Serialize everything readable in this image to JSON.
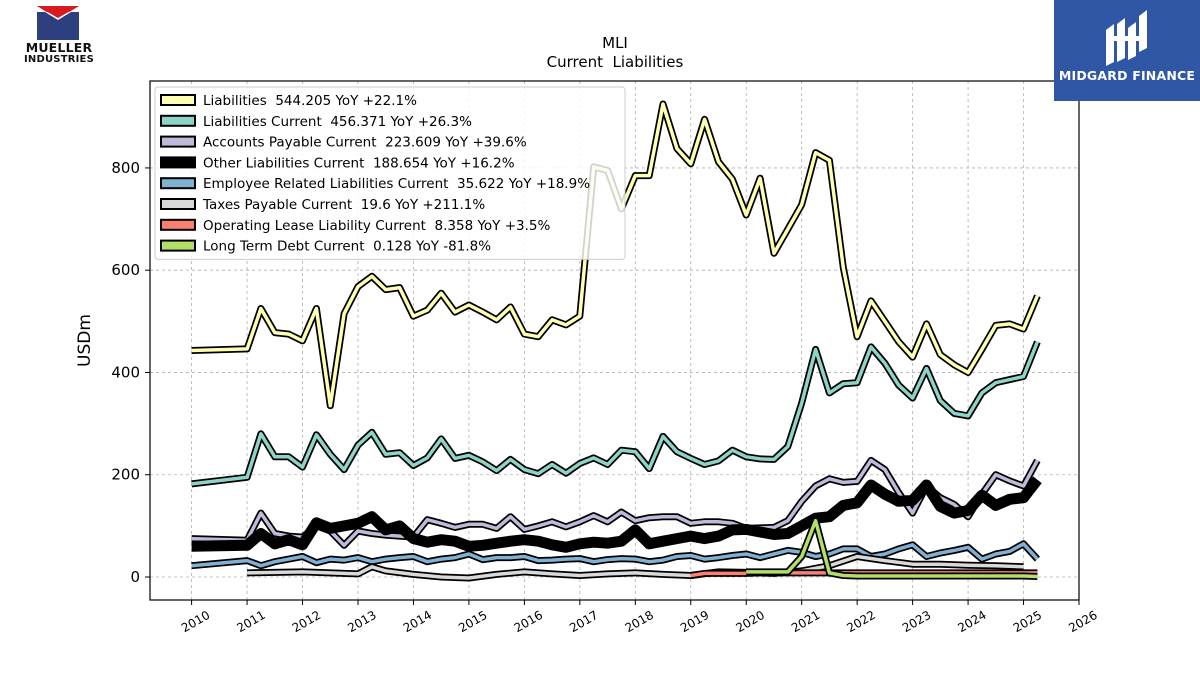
{
  "brand_left": {
    "line1": "MUELLER",
    "line2": "INDUSTRIES"
  },
  "brand_right": {
    "name": "MIDGARD FINANCE"
  },
  "chart_data": {
    "type": "line",
    "title": "MLI",
    "subtitle": "Current  Liabilities",
    "ylabel": "USDm",
    "xlabel": "",
    "xlim": [
      2009.25,
      2026.0
    ],
    "ylim": [
      -45,
      970
    ],
    "x_ticks": [
      2010,
      2011,
      2012,
      2013,
      2014,
      2015,
      2016,
      2017,
      2018,
      2019,
      2020,
      2021,
      2022,
      2023,
      2024,
      2025,
      2026
    ],
    "y_ticks": [
      0,
      200,
      400,
      600,
      800
    ],
    "grid": true,
    "legend_position": "top-left",
    "series": [
      {
        "name": "Liabilities  544.205 YoY +22.1%",
        "color": "#ffffb3",
        "x": [
          2010.0,
          2011.0,
          2011.25,
          2011.5,
          2011.75,
          2012.0,
          2012.25,
          2012.5,
          2012.75,
          2013.0,
          2013.25,
          2013.5,
          2013.75,
          2014.0,
          2014.25,
          2014.5,
          2014.75,
          2015.0,
          2015.25,
          2015.5,
          2015.75,
          2016.0,
          2016.25,
          2016.5,
          2016.75,
          2017.0,
          2017.25,
          2017.5,
          2017.75,
          2018.0,
          2018.25,
          2018.5,
          2018.75,
          2019.0,
          2019.25,
          2019.5,
          2019.75,
          2020.0,
          2020.25,
          2020.5,
          2020.75,
          2021.0,
          2021.25,
          2021.5,
          2021.75,
          2022.0,
          2022.25,
          2022.5,
          2022.75,
          2023.0,
          2023.25,
          2023.5,
          2023.75,
          2024.0,
          2024.25,
          2024.5,
          2024.75,
          2025.0,
          2025.25
        ],
        "y": [
          443,
          446,
          525,
          478,
          475,
          462,
          525,
          335,
          515,
          568,
          588,
          562,
          566,
          510,
          522,
          555,
          518,
          532,
          518,
          503,
          528,
          475,
          470,
          503,
          493,
          510,
          802,
          795,
          720,
          785,
          785,
          925,
          838,
          808,
          895,
          812,
          778,
          708,
          780,
          633,
          680,
          728,
          830,
          815,
          605,
          470,
          540,
          500,
          460,
          430,
          495,
          435,
          415,
          400,
          445,
          492,
          495,
          485,
          550
        ]
      },
      {
        "name": "Liabilities Current  456.371 YoY +26.3%",
        "color": "#8dd3c7",
        "x": [
          2010.0,
          2011.0,
          2011.25,
          2011.5,
          2011.75,
          2012.0,
          2012.25,
          2012.5,
          2012.75,
          2013.0,
          2013.25,
          2013.5,
          2013.75,
          2014.0,
          2014.25,
          2014.5,
          2014.75,
          2015.0,
          2015.25,
          2015.5,
          2015.75,
          2016.0,
          2016.25,
          2016.5,
          2016.75,
          2017.0,
          2017.25,
          2017.5,
          2017.75,
          2018.0,
          2018.25,
          2018.5,
          2018.75,
          2019.0,
          2019.25,
          2019.5,
          2019.75,
          2020.0,
          2020.25,
          2020.5,
          2020.75,
          2021.0,
          2021.25,
          2021.5,
          2021.75,
          2022.0,
          2022.25,
          2022.5,
          2022.75,
          2023.0,
          2023.25,
          2023.5,
          2023.75,
          2024.0,
          2024.25,
          2024.5,
          2024.75,
          2025.0,
          2025.25
        ],
        "y": [
          182,
          195,
          280,
          235,
          235,
          215,
          278,
          240,
          210,
          258,
          283,
          240,
          243,
          218,
          233,
          270,
          232,
          238,
          225,
          208,
          230,
          210,
          202,
          220,
          203,
          222,
          233,
          220,
          248,
          245,
          212,
          275,
          245,
          232,
          220,
          227,
          248,
          235,
          231,
          230,
          255,
          340,
          445,
          360,
          378,
          380,
          450,
          418,
          375,
          350,
          408,
          345,
          320,
          315,
          360,
          380,
          386,
          392,
          460
        ]
      },
      {
        "name": "Accounts Payable Current  223.609 YoY +39.6%",
        "color": "#bebada",
        "x": [
          2010.0,
          2011.0,
          2011.25,
          2011.5,
          2011.75,
          2012.0,
          2012.25,
          2012.5,
          2012.75,
          2013.0,
          2013.25,
          2013.5,
          2013.75,
          2014.0,
          2014.25,
          2014.5,
          2014.75,
          2015.0,
          2015.25,
          2015.5,
          2015.75,
          2016.0,
          2016.25,
          2016.5,
          2016.75,
          2017.0,
          2017.25,
          2017.5,
          2017.75,
          2018.0,
          2018.25,
          2018.5,
          2018.75,
          2019.0,
          2019.25,
          2019.5,
          2019.75,
          2020.0,
          2020.25,
          2020.5,
          2020.75,
          2021.0,
          2021.25,
          2021.5,
          2021.75,
          2022.0,
          2022.25,
          2022.5,
          2022.75,
          2023.0,
          2023.25,
          2023.5,
          2023.75,
          2024.0,
          2024.25,
          2024.5,
          2024.75,
          2025.0,
          2025.25
        ],
        "y": [
          75,
          72,
          125,
          85,
          80,
          78,
          100,
          90,
          62,
          90,
          85,
          82,
          80,
          78,
          112,
          105,
          97,
          103,
          103,
          95,
          118,
          93,
          100,
          108,
          98,
          108,
          120,
          108,
          127,
          110,
          116,
          118,
          118,
          105,
          108,
          108,
          105,
          95,
          96,
          97,
          110,
          148,
          178,
          192,
          185,
          187,
          228,
          210,
          165,
          125,
          178,
          155,
          142,
          118,
          162,
          200,
          188,
          178,
          228
        ]
      },
      {
        "name": "Other Liabilities Current  188.654 YoY +16.2%",
        "color": "#000000",
        "x": [
          2010.0,
          2011.0,
          2011.25,
          2011.5,
          2011.75,
          2012.0,
          2012.25,
          2012.5,
          2012.75,
          2013.0,
          2013.25,
          2013.5,
          2013.75,
          2014.0,
          2014.25,
          2014.5,
          2014.75,
          2015.0,
          2015.25,
          2015.5,
          2015.75,
          2016.0,
          2016.25,
          2016.5,
          2016.75,
          2017.0,
          2017.25,
          2017.5,
          2017.75,
          2018.0,
          2018.25,
          2018.5,
          2018.75,
          2019.0,
          2019.25,
          2019.5,
          2019.75,
          2020.0,
          2020.25,
          2020.5,
          2020.75,
          2021.0,
          2021.25,
          2021.5,
          2021.75,
          2022.0,
          2022.25,
          2022.5,
          2022.75,
          2023.0,
          2023.25,
          2023.5,
          2023.75,
          2024.0,
          2024.25,
          2024.5,
          2024.75,
          2025.0,
          2025.25
        ],
        "y": [
          60,
          62,
          85,
          65,
          73,
          63,
          106,
          95,
          100,
          105,
          118,
          92,
          100,
          75,
          68,
          73,
          70,
          60,
          62,
          66,
          70,
          73,
          70,
          63,
          58,
          65,
          68,
          66,
          70,
          92,
          65,
          70,
          75,
          80,
          75,
          80,
          92,
          93,
          88,
          83,
          85,
          100,
          115,
          118,
          140,
          145,
          180,
          162,
          148,
          150,
          180,
          138,
          125,
          130,
          160,
          140,
          152,
          155,
          190
        ]
      },
      {
        "name": "Employee Related Liabilities Current  35.622 YoY +18.9%",
        "color": "#80b1d3",
        "x": [
          2010.0,
          2011.0,
          2011.25,
          2011.5,
          2011.75,
          2012.0,
          2012.25,
          2012.5,
          2012.75,
          2013.0,
          2013.25,
          2013.5,
          2013.75,
          2014.0,
          2014.25,
          2014.5,
          2014.75,
          2015.0,
          2015.25,
          2015.5,
          2015.75,
          2016.0,
          2016.25,
          2016.5,
          2016.75,
          2017.0,
          2017.25,
          2017.5,
          2017.75,
          2018.0,
          2018.25,
          2018.5,
          2018.75,
          2019.0,
          2019.25,
          2019.5,
          2019.75,
          2020.0,
          2020.25,
          2020.5,
          2020.75,
          2021.0,
          2021.25,
          2021.5,
          2021.75,
          2022.0,
          2022.25,
          2022.5,
          2022.75,
          2023.0,
          2023.25,
          2023.5,
          2023.75,
          2024.0,
          2024.25,
          2024.5,
          2024.75,
          2025.0,
          2025.25
        ],
        "y": [
          22,
          32,
          22,
          30,
          35,
          40,
          28,
          35,
          33,
          38,
          30,
          35,
          38,
          40,
          30,
          35,
          38,
          45,
          34,
          38,
          38,
          40,
          32,
          33,
          35,
          36,
          30,
          34,
          36,
          35,
          30,
          33,
          40,
          42,
          35,
          38,
          42,
          45,
          38,
          45,
          52,
          48,
          40,
          45,
          55,
          55,
          40,
          45,
          55,
          63,
          40,
          47,
          52,
          58,
          35,
          45,
          50,
          65,
          35
        ]
      },
      {
        "name": "Taxes Payable Current  19.6 YoY +211.1%",
        "color": "#d9d9d9",
        "x": [
          2011.0,
          2011.5,
          2012.0,
          2012.5,
          2013.0,
          2013.25,
          2013.5,
          2014.0,
          2014.5,
          2015.0,
          2015.5,
          2016.0,
          2016.5,
          2017.0,
          2017.5,
          2018.0,
          2018.5,
          2019.0,
          2019.5,
          2020.0,
          2020.5,
          2021.0,
          2021.5,
          2022.0,
          2022.5,
          2023.0,
          2023.5,
          2024.0,
          2024.5,
          2025.0
        ],
        "y": [
          8,
          9,
          10,
          8,
          6,
          20,
          12,
          5,
          0,
          -2,
          5,
          10,
          6,
          3,
          6,
          8,
          5,
          3,
          10,
          9,
          7,
          12,
          22,
          40,
          32,
          25,
          25,
          23,
          22,
          20
        ]
      },
      {
        "name": "Operating Lease Liability Current  8.358 YoY +3.5%",
        "color": "#fb8072",
        "x": [
          2019.0,
          2019.25,
          2019.5,
          2019.75,
          2020.0,
          2020.25,
          2020.5,
          2020.75,
          2021.0,
          2021.25,
          2021.5,
          2021.75,
          2022.0,
          2022.25,
          2022.5,
          2022.75,
          2023.0,
          2023.25,
          2023.5,
          2023.75,
          2024.0,
          2024.25,
          2024.5,
          2024.75,
          2025.0,
          2025.25
        ],
        "y": [
          3,
          7,
          7,
          7,
          7,
          8,
          8,
          8,
          8,
          8,
          8,
          8,
          8,
          8,
          8,
          8,
          8,
          8,
          8,
          8,
          8,
          8,
          8,
          8,
          8,
          8
        ]
      },
      {
        "name": "Long Term Debt Current  0.128 YoY -81.8%",
        "color": "#b3de69",
        "x": [
          2020.0,
          2020.25,
          2020.5,
          2020.75,
          2021.0,
          2021.25,
          2021.5,
          2021.75,
          2022.0,
          2022.25,
          2022.5,
          2022.75,
          2023.0,
          2023.25,
          2023.5,
          2023.75,
          2024.0,
          2024.25,
          2024.5,
          2024.75,
          2025.0,
          2025.25
        ],
        "y": [
          10,
          10,
          10,
          10,
          40,
          110,
          8,
          3,
          2,
          2,
          2,
          2,
          2,
          2,
          2,
          2,
          2,
          2,
          2,
          2,
          2,
          1
        ]
      }
    ]
  }
}
